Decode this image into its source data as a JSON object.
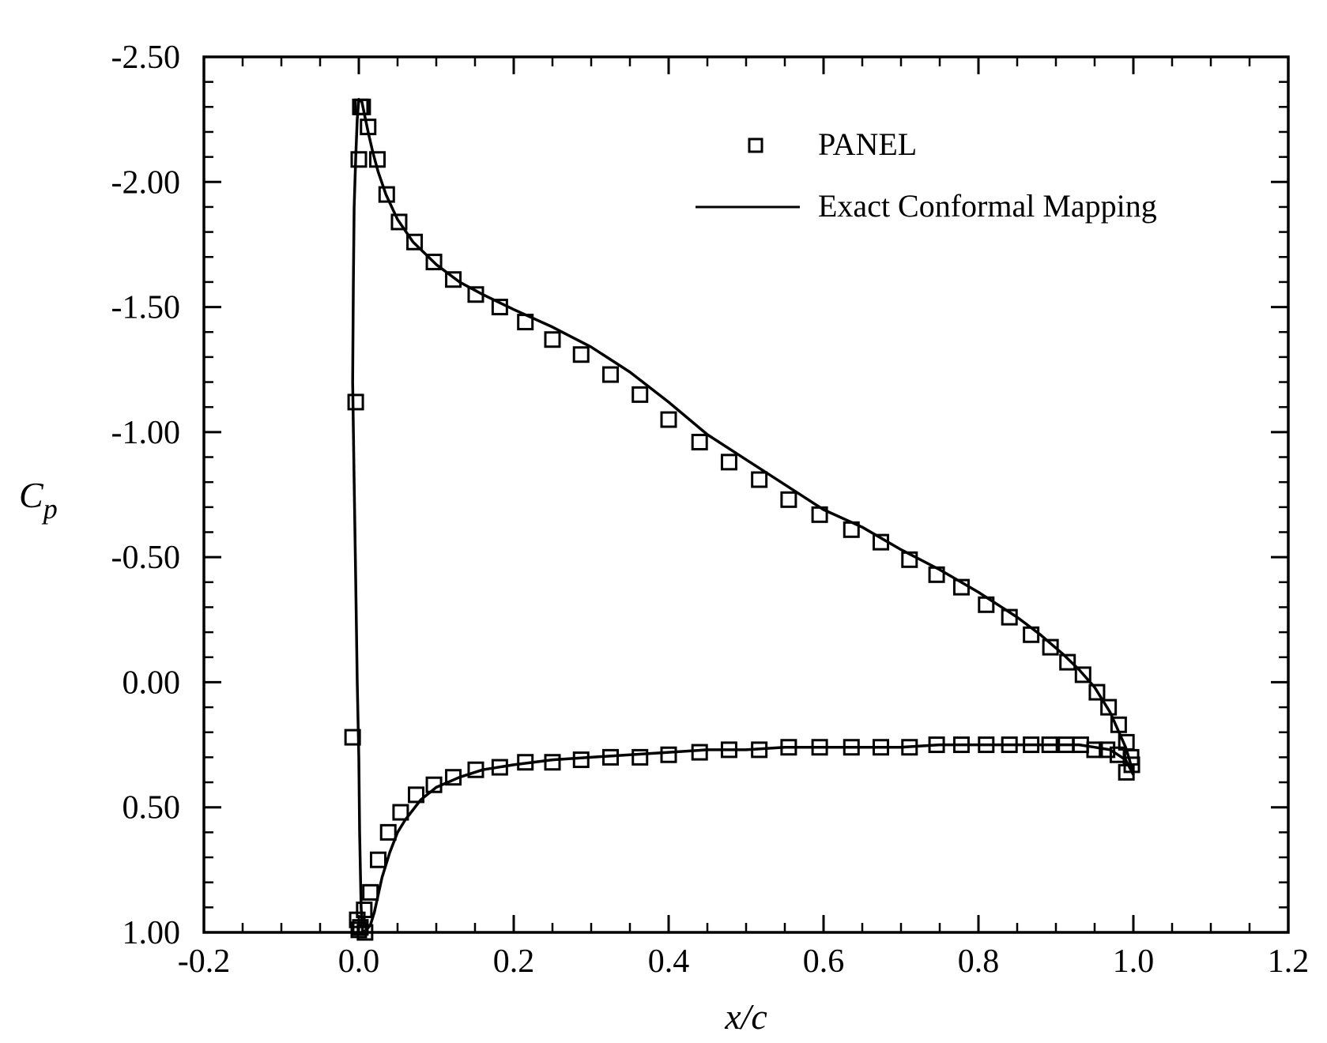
{
  "chart_data": {
    "type": "line",
    "title": "",
    "xlabel": "x/c",
    "ylabel": {
      "main": "C",
      "sub": "p"
    },
    "xlim": [
      -0.2,
      1.2
    ],
    "ylim": [
      1.0,
      -2.5
    ],
    "y_inverted": true,
    "grid": false,
    "legend_placement": "top-right",
    "x_ticks": [
      -0.2,
      0.0,
      0.2,
      0.4,
      0.6,
      0.8,
      1.0,
      1.2
    ],
    "x_tick_labels": [
      "-0.2",
      "0.0",
      "0.2",
      "0.4",
      "0.6",
      "0.8",
      "1.0",
      "1.2"
    ],
    "y_ticks": [
      -2.5,
      -2.0,
      -1.5,
      -1.0,
      -0.5,
      0.0,
      0.5,
      1.0
    ],
    "y_tick_labels": [
      "-2.50",
      "-2.00",
      "-1.50",
      "-1.00",
      "-0.50",
      "0.00",
      "0.50",
      "1.00"
    ],
    "series": [
      {
        "name": "PANEL",
        "style": "square-markers",
        "x": [
          0.002,
          0.0,
          -0.004,
          -0.008,
          -0.002,
          0.0,
          0.005,
          0.012,
          0.024,
          0.036,
          0.052,
          0.072,
          0.097,
          0.122,
          0.151,
          0.182,
          0.215,
          0.25,
          0.287,
          0.325,
          0.363,
          0.4,
          0.44,
          0.478,
          0.517,
          0.555,
          0.595,
          0.636,
          0.674,
          0.711,
          0.746,
          0.778,
          0.81,
          0.84,
          0.868,
          0.893,
          0.915,
          0.935,
          0.953,
          0.968,
          0.981,
          0.991,
          0.998,
          0.997,
          0.991,
          0.98,
          0.966,
          0.95,
          0.932,
          0.913,
          0.892,
          0.868,
          0.84,
          0.81,
          0.778,
          0.746,
          0.711,
          0.674,
          0.636,
          0.595,
          0.555,
          0.517,
          0.478,
          0.44,
          0.4,
          0.363,
          0.325,
          0.287,
          0.25,
          0.215,
          0.182,
          0.151,
          0.122,
          0.097,
          0.074,
          0.054,
          0.038,
          0.025,
          0.015,
          0.007,
          0.002,
          0.008
        ],
        "y": [
          -2.3,
          -2.09,
          -1.12,
          0.22,
          0.95,
          0.99,
          -2.3,
          -2.22,
          -2.09,
          -1.95,
          -1.84,
          -1.76,
          -1.68,
          -1.61,
          -1.55,
          -1.5,
          -1.44,
          -1.37,
          -1.31,
          -1.23,
          -1.15,
          -1.05,
          -0.96,
          -0.88,
          -0.81,
          -0.73,
          -0.67,
          -0.61,
          -0.56,
          -0.49,
          -0.43,
          -0.38,
          -0.31,
          -0.26,
          -0.19,
          -0.14,
          -0.08,
          -0.03,
          0.04,
          0.1,
          0.17,
          0.24,
          0.33,
          0.3,
          0.36,
          0.29,
          0.27,
          0.27,
          0.25,
          0.25,
          0.25,
          0.25,
          0.25,
          0.25,
          0.25,
          0.25,
          0.26,
          0.26,
          0.26,
          0.26,
          0.26,
          0.27,
          0.27,
          0.28,
          0.29,
          0.3,
          0.3,
          0.31,
          0.32,
          0.32,
          0.34,
          0.35,
          0.38,
          0.41,
          0.45,
          0.52,
          0.6,
          0.71,
          0.84,
          0.91,
          0.98,
          1.0
        ]
      },
      {
        "name": "Exact Conformal Mapping",
        "style": "solid-line",
        "upper_surface": {
          "x": [
            0.005,
            0.003,
            0.001,
            0.0,
            -0.002,
            -0.004,
            -0.006,
            -0.008,
            -0.007,
            -0.006,
            -0.004,
            -0.002,
            0.0,
            0.004,
            0.008,
            0.012,
            0.018,
            0.025,
            0.035,
            0.05,
            0.07,
            0.1,
            0.13,
            0.16,
            0.2,
            0.25,
            0.3,
            0.35,
            0.4,
            0.45,
            0.5,
            0.55,
            0.6,
            0.65,
            0.7,
            0.75,
            0.8,
            0.85,
            0.88,
            0.91,
            0.93,
            0.95,
            0.96,
            0.97,
            0.98,
            0.99,
            0.995,
            1.0
          ],
          "y": [
            1.0,
            0.9,
            0.6,
            0.3,
            0.0,
            -0.4,
            -0.8,
            -1.2,
            -1.6,
            -1.9,
            -2.1,
            -2.25,
            -2.33,
            -2.32,
            -2.26,
            -2.2,
            -2.12,
            -2.04,
            -1.95,
            -1.85,
            -1.76,
            -1.67,
            -1.6,
            -1.55,
            -1.49,
            -1.42,
            -1.34,
            -1.24,
            -1.12,
            -0.99,
            -0.89,
            -0.79,
            -0.69,
            -0.62,
            -0.53,
            -0.45,
            -0.36,
            -0.26,
            -0.19,
            -0.11,
            -0.05,
            0.02,
            0.07,
            0.12,
            0.19,
            0.26,
            0.31,
            0.37
          ]
        },
        "lower_surface": {
          "x": [
            0.005,
            0.01,
            0.015,
            0.02,
            0.025,
            0.03,
            0.04,
            0.05,
            0.06,
            0.08,
            0.1,
            0.13,
            0.16,
            0.2,
            0.25,
            0.3,
            0.35,
            0.4,
            0.45,
            0.5,
            0.55,
            0.6,
            0.65,
            0.7,
            0.75,
            0.8,
            0.85,
            0.9,
            0.93,
            0.95,
            0.97,
            0.98,
            0.99,
            1.0
          ],
          "y": [
            1.0,
            0.99,
            0.97,
            0.92,
            0.85,
            0.78,
            0.68,
            0.6,
            0.55,
            0.47,
            0.42,
            0.38,
            0.35,
            0.33,
            0.31,
            0.3,
            0.29,
            0.28,
            0.27,
            0.27,
            0.26,
            0.26,
            0.26,
            0.26,
            0.25,
            0.25,
            0.25,
            0.25,
            0.25,
            0.26,
            0.27,
            0.29,
            0.31,
            0.37
          ]
        }
      }
    ]
  }
}
